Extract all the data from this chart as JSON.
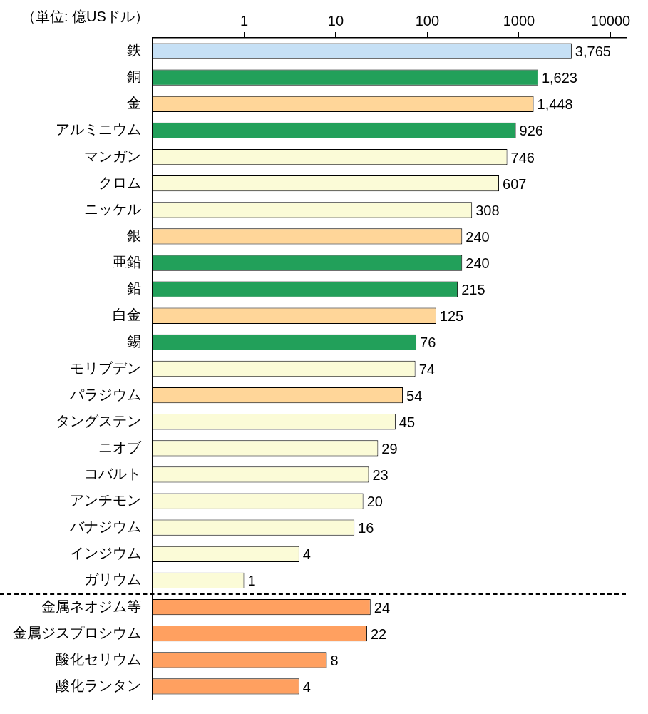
{
  "chart_data": {
    "type": "bar",
    "orientation": "horizontal",
    "log": "x",
    "title": "（単位: 億USドル）",
    "categories": [
      "鉄",
      "銅",
      "金",
      "アルミニウム",
      "マンガン",
      "クロム",
      "ニッケル",
      "銀",
      "亜鉛",
      "鉛",
      "白金",
      "錫",
      "モリブデン",
      "パラジウム",
      "タングステン",
      "ニオブ",
      "コバルト",
      "アンチモン",
      "バナジウム",
      "インジウム",
      "ガリウム",
      "金属ネオジム等",
      "金属ジスプロシウム",
      "酸化セリウム",
      "酸化ランタン"
    ],
    "values": [
      3765,
      1623,
      1448,
      926,
      746,
      607,
      308,
      240,
      240,
      215,
      125,
      76,
      74,
      54,
      45,
      29,
      23,
      20,
      16,
      4,
      1,
      24,
      22,
      8,
      4
    ],
    "value_labels": [
      "3,765",
      "1,623",
      "1,448",
      "926",
      "746",
      "607",
      "308",
      "240",
      "240",
      "215",
      "125",
      "76",
      "74",
      "54",
      "45",
      "29",
      "23",
      "20",
      "16",
      "4",
      "1",
      "24",
      "22",
      "8",
      "4"
    ],
    "colors": [
      "#c6e0f5",
      "#22a05a",
      "#ffd699",
      "#22a05a",
      "#fbfbd7",
      "#fbfbd7",
      "#fbfbd7",
      "#ffd699",
      "#22a05a",
      "#22a05a",
      "#ffd699",
      "#22a05a",
      "#fbfbd7",
      "#ffd699",
      "#fbfbd7",
      "#fbfbd7",
      "#fbfbd7",
      "#fbfbd7",
      "#fbfbd7",
      "#fbfbd7",
      "#fbfbd7",
      "#ffa060",
      "#ffa060",
      "#ffa060",
      "#ffa060"
    ],
    "xlim": [
      0.1,
      15000
    ],
    "xticks": [
      1,
      10,
      100,
      1000,
      10000
    ],
    "grid": false
  }
}
